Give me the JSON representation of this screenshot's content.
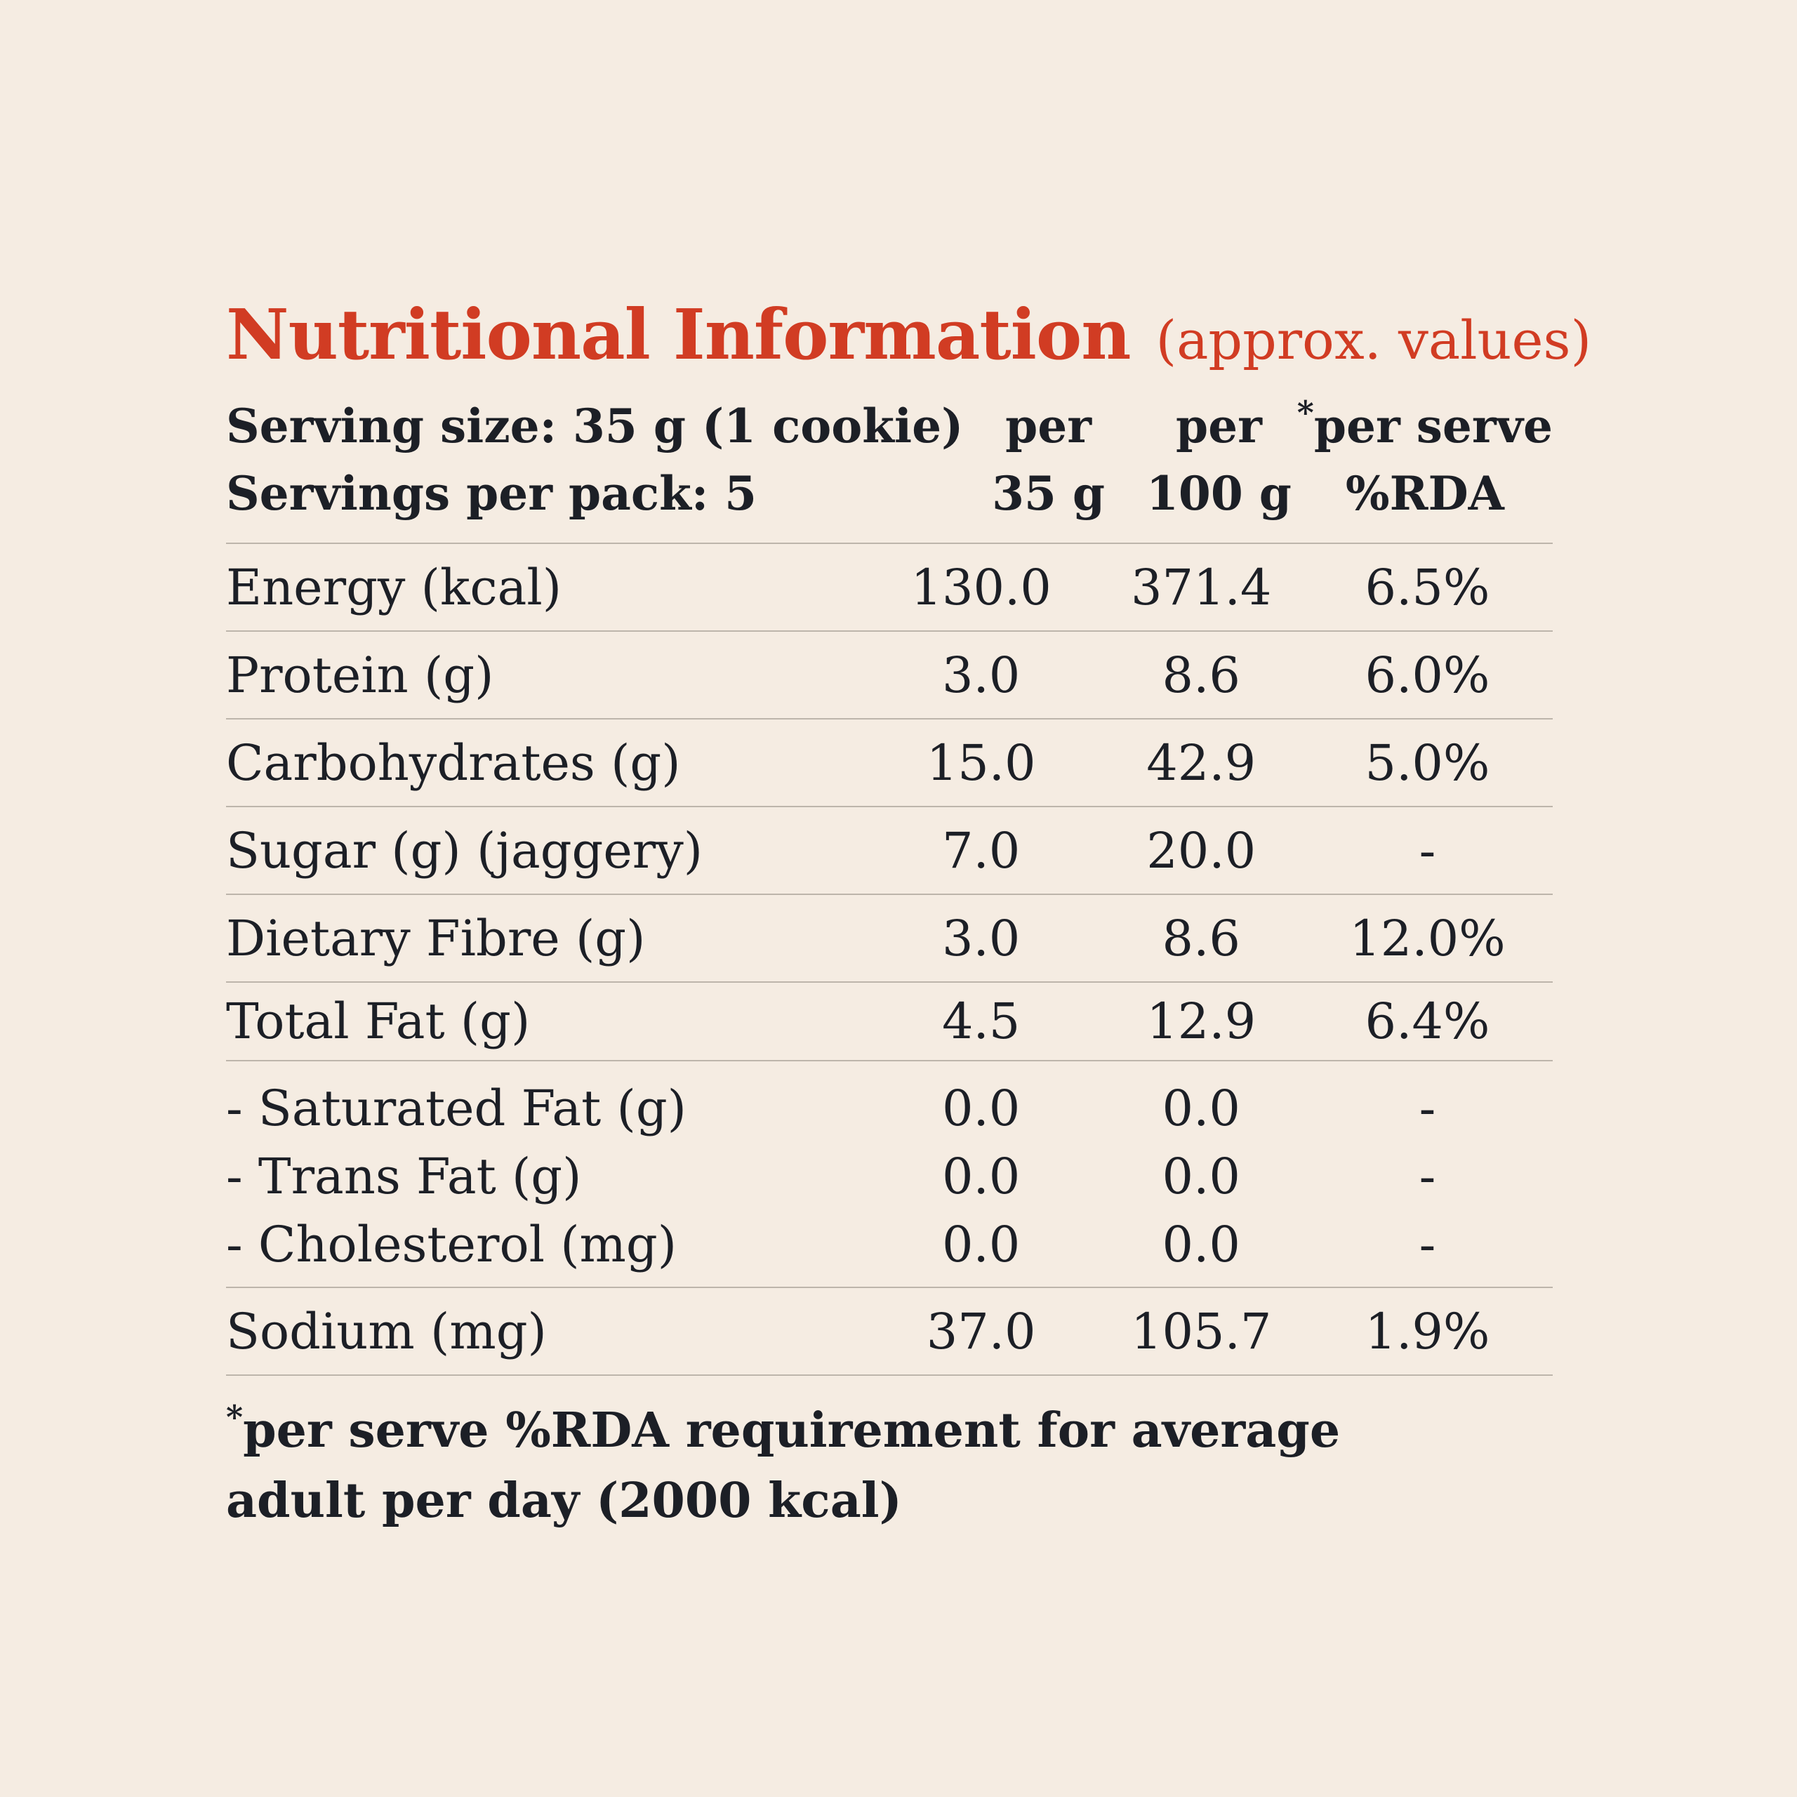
{
  "title": {
    "main": "Nutritional Information",
    "sub": "(approx. values)"
  },
  "header": {
    "serving_size": "Serving size: 35 g (1 cookie)",
    "servings_per_pack": "Servings per pack: 5",
    "col_a_line1": "per",
    "col_a_line2": "35 g",
    "col_b_line1": "per",
    "col_b_line2": "100 g",
    "col_c_asterisk": "*",
    "col_c_line1": "per serve",
    "col_c_line2": "%RDA"
  },
  "rows": [
    {
      "label": "Energy (kcal)",
      "per35": "130.0",
      "per100": "371.4",
      "rda": "6.5%"
    },
    {
      "label": "Protein (g)",
      "per35": "3.0",
      "per100": "8.6",
      "rda": "6.0%"
    },
    {
      "label": "Carbohydrates (g)",
      "per35": "15.0",
      "per100": "42.9",
      "rda": "5.0%"
    },
    {
      "label": "Sugar (g) (jaggery)",
      "per35": "7.0",
      "per100": "20.0",
      "rda": "-"
    },
    {
      "label": "Dietary Fibre (g)",
      "per35": "3.0",
      "per100": "8.6",
      "rda": "12.0%"
    },
    {
      "label": "Total Fat (g)",
      "per35": "4.5",
      "per100": "12.9",
      "rda": "6.4%"
    }
  ],
  "fat_breakdown": [
    {
      "label": "- Saturated Fat (g)",
      "per35": "0.0",
      "per100": "0.0",
      "rda": "-"
    },
    {
      "label": "- Trans Fat (g)",
      "per35": "0.0",
      "per100": "0.0",
      "rda": "-"
    },
    {
      "label": "- Cholesterol (mg)",
      "per35": "0.0",
      "per100": "0.0",
      "rda": "-"
    }
  ],
  "sodium": {
    "label": "Sodium (mg)",
    "per35": "37.0",
    "per100": "105.7",
    "rda": "1.9%"
  },
  "footnote": {
    "asterisk": "*",
    "text": "per serve %RDA requirement for average adult per day (2000 kcal)"
  }
}
